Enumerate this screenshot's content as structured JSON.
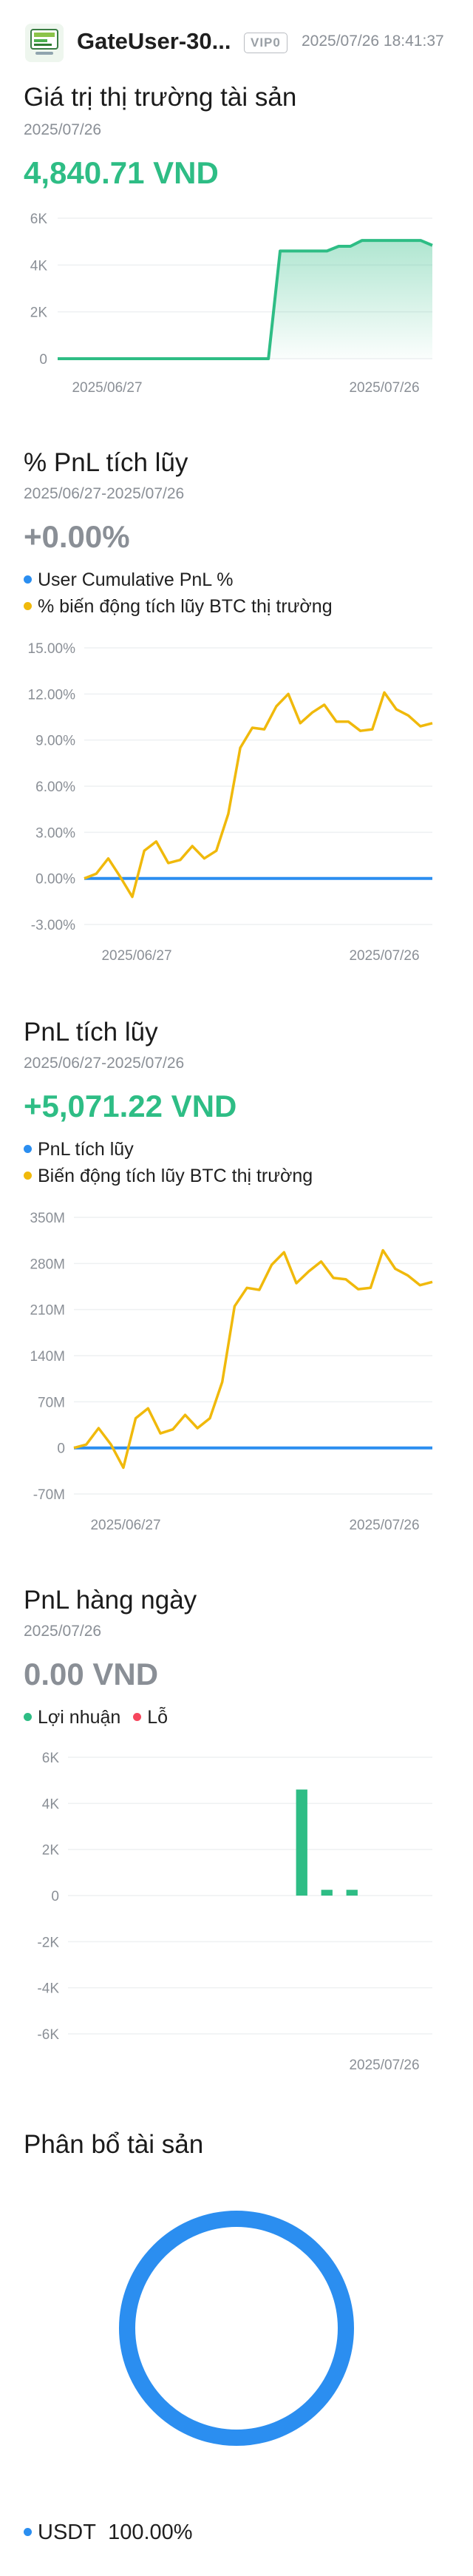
{
  "header": {
    "username": "GateUser-30...",
    "vip_badge": "VIP0",
    "timestamp": "2025/07/26 18:41:37"
  },
  "asset_value": {
    "title": "Giá trị thị trường tài sản",
    "date": "2025/07/26",
    "value": "4,840.71 VND"
  },
  "cum_pnl_pct": {
    "title": "% PnL tích lũy",
    "date": "2025/06/27-2025/07/26",
    "value": "+0.00%",
    "legend": [
      {
        "label": "User Cumulative PnL %",
        "color": "#2b8ef0"
      },
      {
        "label": "% biến động tích lũy BTC thị trường",
        "color": "#f0b90b"
      }
    ]
  },
  "cum_pnl": {
    "title": "PnL tích lũy",
    "date": "2025/06/27-2025/07/26",
    "value": "+5,071.22 VND",
    "legend": [
      {
        "label": "PnL tích lũy",
        "color": "#2b8ef0"
      },
      {
        "label": "Biến động tích lũy BTC thị trường",
        "color": "#f0b90b"
      }
    ]
  },
  "daily_pnl": {
    "title": "PnL hàng ngày",
    "date": "2025/07/26",
    "value": "0.00 VND",
    "legend": [
      {
        "label": "Lợi nhuận",
        "color": "#2ebd85"
      },
      {
        "label": "Lỗ",
        "color": "#f6465d"
      }
    ]
  },
  "allocation": {
    "title": "Phân bổ tài sản",
    "items": [
      {
        "asset": "USDT",
        "pct": "100.00%",
        "share": 1.0,
        "color": "#2b8ef0"
      }
    ]
  },
  "chart_data": [
    {
      "type": "area",
      "x_ticks": [
        "2025/06/27",
        "2025/07/26"
      ],
      "y_ticks": [
        "0",
        "2K",
        "4K",
        "6K"
      ],
      "ylim": [
        0,
        6000
      ],
      "series": [
        {
          "color": "#2ebd85",
          "values": [
            0,
            0,
            0,
            0,
            0,
            0,
            0,
            0,
            0,
            0,
            0,
            0,
            0,
            0,
            0,
            0,
            0,
            0,
            0,
            4600,
            4600,
            4600,
            4600,
            4600,
            4800,
            4800,
            5050,
            5050,
            5050,
            5050,
            5050,
            5050,
            4840
          ]
        }
      ]
    },
    {
      "type": "line",
      "x_ticks": [
        "2025/06/27",
        "2025/07/26"
      ],
      "y_ticks": [
        "15.00%",
        "12.00%",
        "9.00%",
        "6.00%",
        "3.00%",
        "0.00%",
        "-3.00%"
      ],
      "ylim": [
        -3,
        15
      ],
      "series": [
        {
          "name": "User Cumulative PnL %",
          "color": "#2b8ef0",
          "values": [
            0,
            0,
            0,
            0,
            0,
            0,
            0,
            0,
            0,
            0,
            0,
            0,
            0,
            0,
            0,
            0,
            0,
            0,
            0,
            0,
            0,
            0,
            0,
            0,
            0,
            0,
            0,
            0,
            0,
            0,
            0,
            0,
            0
          ]
        },
        {
          "name": "% biến động tích lũy BTC thị trường",
          "color": "#f0b90b",
          "values": [
            0,
            0.3,
            1.3,
            0.1,
            -1.2,
            1.8,
            2.4,
            1.0,
            1.2,
            2.1,
            1.3,
            1.8,
            4.2,
            8.5,
            9.8,
            9.7,
            11.2,
            12.0,
            10.1,
            10.8,
            11.3,
            10.2,
            10.2,
            9.6,
            9.7,
            12.1,
            11.0,
            10.6,
            9.9,
            10.1
          ]
        }
      ]
    },
    {
      "type": "line",
      "x_ticks": [
        "2025/06/27",
        "2025/07/26"
      ],
      "y_ticks": [
        "350M",
        "280M",
        "210M",
        "140M",
        "70M",
        "0",
        "-70M"
      ],
      "ylim": [
        -70000000,
        350000000
      ],
      "series": [
        {
          "name": "PnL tích lũy",
          "color": "#2b8ef0",
          "values": [
            0,
            0,
            0,
            0,
            0,
            0,
            0,
            0,
            0,
            0,
            0,
            0,
            0,
            0,
            0,
            0,
            0,
            0,
            0,
            0,
            0,
            0,
            0,
            0,
            0,
            0,
            0,
            0,
            0,
            0,
            0,
            0,
            0
          ]
        },
        {
          "name": "Biến động tích lũy BTC thị trường",
          "color": "#f0b90b",
          "values": [
            0,
            5000000,
            30000000,
            5000000,
            -30000000,
            45000000,
            60000000,
            22000000,
            28000000,
            50000000,
            30000000,
            45000000,
            100000000,
            215000000,
            243000000,
            240000000,
            278000000,
            297000000,
            250000000,
            268000000,
            283000000,
            258000000,
            256000000,
            241000000,
            243000000,
            300000000,
            272000000,
            262000000,
            247000000,
            252000000
          ]
        }
      ]
    },
    {
      "type": "bar",
      "x_ticks": [
        "2025/07/26"
      ],
      "y_ticks": [
        "6K",
        "4K",
        "2K",
        "0",
        "-2K",
        "-4K",
        "-6K"
      ],
      "ylim": [
        -6000,
        6000
      ],
      "series": [
        {
          "name": "Lợi nhuận",
          "color": "#2ebd85",
          "values": [
            0,
            0,
            0,
            0,
            0,
            0,
            0,
            0,
            0,
            0,
            0,
            0,
            0,
            0,
            0,
            0,
            0,
            0,
            4600,
            0,
            250,
            0,
            250,
            0,
            0,
            0,
            0,
            0,
            0
          ]
        },
        {
          "name": "Lỗ",
          "color": "#f6465d",
          "values": [
            0,
            0,
            0,
            0,
            0,
            0,
            0,
            0,
            0,
            0,
            0,
            0,
            0,
            0,
            0,
            0,
            0,
            0,
            0,
            0,
            0,
            0,
            0,
            0,
            0,
            0,
            0,
            0,
            0
          ]
        }
      ]
    },
    {
      "type": "pie",
      "categories": [
        "USDT"
      ],
      "values": [
        100.0
      ]
    }
  ]
}
